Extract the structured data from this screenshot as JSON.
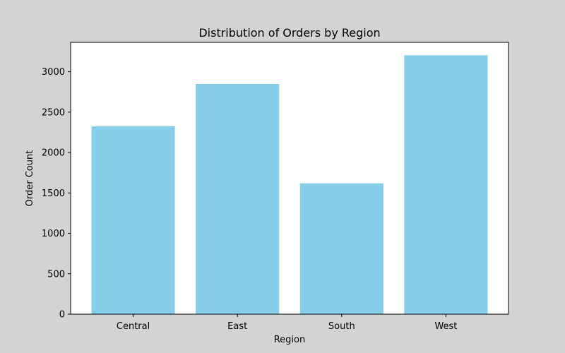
{
  "chart_data": {
    "type": "bar",
    "title": "Distribution of Orders by Region",
    "xlabel": "Region",
    "ylabel": "Order Count",
    "categories": [
      "Central",
      "East",
      "South",
      "West"
    ],
    "values": [
      2323,
      2848,
      1620,
      3203
    ],
    "ylim": [
      0,
      3363
    ],
    "yticks": [
      0,
      500,
      1000,
      1500,
      2000,
      2500,
      3000
    ],
    "grid": false,
    "bar_color": "#87ceeb",
    "background_color": "#d3d3d3"
  }
}
